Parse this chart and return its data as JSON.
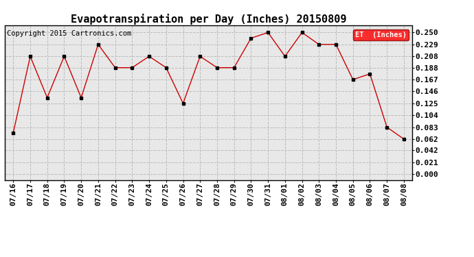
{
  "title": "Evapotranspiration per Day (Inches) 20150809",
  "copyright": "Copyright 2015 Cartronics.com",
  "legend_label": "ET  (Inches)",
  "legend_bg": "#FF0000",
  "legend_text_color": "#FFFFFF",
  "x_labels": [
    "07/16",
    "07/17",
    "07/18",
    "07/19",
    "07/20",
    "07/21",
    "07/22",
    "07/23",
    "07/24",
    "07/25",
    "07/26",
    "07/27",
    "07/28",
    "07/29",
    "07/30",
    "07/31",
    "08/01",
    "08/02",
    "08/03",
    "08/04",
    "08/05",
    "08/06",
    "08/07",
    "08/08"
  ],
  "y_values": [
    0.073,
    0.208,
    0.135,
    0.208,
    0.135,
    0.229,
    0.188,
    0.188,
    0.208,
    0.188,
    0.125,
    0.208,
    0.188,
    0.188,
    0.24,
    0.25,
    0.208,
    0.25,
    0.229,
    0.229,
    0.167,
    0.177,
    0.083,
    0.062
  ],
  "y_ticks": [
    0.0,
    0.021,
    0.042,
    0.062,
    0.083,
    0.104,
    0.125,
    0.146,
    0.167,
    0.188,
    0.208,
    0.229,
    0.25
  ],
  "line_color": "#CC0000",
  "marker_color": "#000000",
  "bg_color": "#FFFFFF",
  "plot_bg_color": "#E8E8E8",
  "grid_color": "#BBBBBB",
  "title_fontsize": 11,
  "tick_fontsize": 8,
  "copyright_fontsize": 7.5
}
